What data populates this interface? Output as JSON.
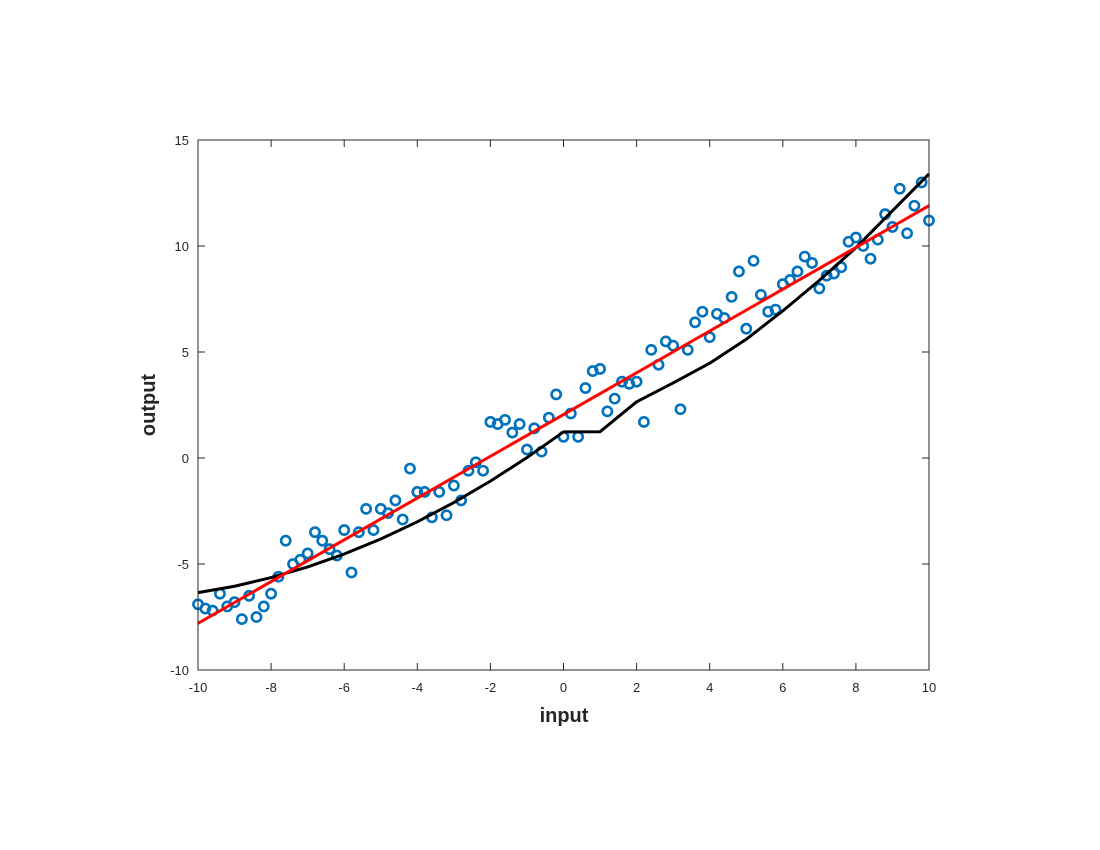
{
  "chart_data": {
    "type": "scatter",
    "xlabel": "input",
    "ylabel": "output",
    "xlim": [
      -10,
      10
    ],
    "ylim": [
      -10,
      15
    ],
    "xticks": [
      -10,
      -8,
      -6,
      -4,
      -2,
      0,
      2,
      4,
      6,
      8,
      10
    ],
    "yticks": [
      -10,
      -5,
      0,
      5,
      10,
      15
    ],
    "grid": false,
    "legend": "none",
    "colors": {
      "points": "#0072BD",
      "linear_fit": "#FF0000",
      "quadratic_fit": "#000000",
      "axes": "#262626"
    },
    "points": {
      "x": [
        -10,
        -9.8,
        -9.6,
        -9.4,
        -9.2,
        -9,
        -8.8,
        -8.6,
        -8.4,
        -8.2,
        -8,
        -7.8,
        -7.6,
        -7.4,
        -7.2,
        -7,
        -6.8,
        -6.6,
        -6.4,
        -6.2,
        -6,
        -5.8,
        -5.6,
        -5.4,
        -5.2,
        -5,
        -4.8,
        -4.6,
        -4.4,
        -4.2,
        -4,
        -3.8,
        -3.6,
        -3.4,
        -3.2,
        -3,
        -2.8,
        -2.6,
        -2.4,
        -2.2,
        -2,
        -1.8,
        -1.6,
        -1.4,
        -1.2,
        -1,
        -0.8,
        -0.6,
        -0.4,
        -0.2,
        0,
        0.2,
        0.4,
        0.6,
        0.8,
        1,
        1.2,
        1.4,
        1.6,
        1.8,
        2,
        2.2,
        2.4,
        2.6,
        2.8,
        3,
        3.2,
        3.4,
        3.6,
        3.8,
        4,
        4.2,
        4.4,
        4.6,
        4.8,
        5,
        5.2,
        5.4,
        5.6,
        5.8,
        6,
        6.2,
        6.4,
        6.6,
        6.8,
        7,
        7.2,
        7.4,
        7.6,
        7.8,
        8,
        8.2,
        8.4,
        8.6,
        8.8,
        9,
        9.2,
        9.4,
        9.6,
        9.8,
        10
      ],
      "y": [
        -6.9,
        -7.1,
        -7.2,
        -6.4,
        -7.0,
        -6.8,
        -7.6,
        -6.5,
        -7.5,
        -7.0,
        -6.4,
        -5.6,
        -3.9,
        -5.0,
        -4.8,
        -4.5,
        -3.5,
        -3.9,
        -4.3,
        -4.6,
        -3.4,
        -5.4,
        -3.5,
        -2.4,
        -3.4,
        -2.4,
        -2.6,
        -2.0,
        -2.9,
        -0.5,
        -1.6,
        -1.6,
        -2.8,
        -1.6,
        -2.7,
        -1.3,
        -2.0,
        -0.6,
        -0.2,
        -0.6,
        1.7,
        1.6,
        1.8,
        1.2,
        1.6,
        0.4,
        1.4,
        0.3,
        1.9,
        3.0,
        1.0,
        2.1,
        1.0,
        3.3,
        4.1,
        4.2,
        2.2,
        2.8,
        3.6,
        3.5,
        3.6,
        1.7,
        5.1,
        4.4,
        5.5,
        5.3,
        2.3,
        5.1,
        6.4,
        6.9,
        5.7,
        6.8,
        6.6,
        7.6,
        8.8,
        6.1,
        9.3,
        7.7,
        6.9,
        7.0,
        8.2,
        8.4,
        8.8,
        9.5,
        9.2,
        8.0,
        8.6,
        8.7,
        9.0,
        10.2,
        10.4,
        10.0,
        9.4,
        10.3,
        11.5,
        10.9,
        12.7,
        10.6,
        11.9,
        13.0,
        11.2
      ]
    },
    "linear_fit": {
      "x": [
        -10,
        10
      ],
      "y": [
        -7.8,
        11.9
      ]
    },
    "quadratic_fit": {
      "x": [
        -10,
        -9,
        -8,
        -7,
        -6,
        -5,
        -4,
        -3,
        -2,
        -1,
        0,
        1,
        2,
        3,
        4,
        5,
        6,
        7,
        8,
        9,
        10
      ],
      "y": [
        -6.35,
        -6.05,
        -5.64,
        -5.14,
        -4.53,
        -3.82,
        -3.01,
        -2.1,
        -1.09,
        0.02,
        1.23,
        1.24,
        2.65,
        3.54,
        4.47,
        5.6,
        6.94,
        8.38,
        9.92,
        11.66,
        13.4
      ]
    }
  }
}
